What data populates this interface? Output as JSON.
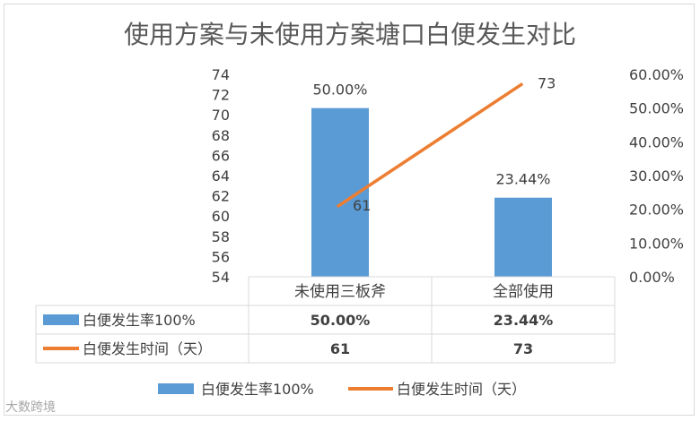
{
  "chart_data": {
    "type": "bar",
    "title": "使用方案与未使用方案塘口白便发生对比",
    "categories": [
      "未使用三板斧",
      "全部使用"
    ],
    "series": [
      {
        "name": "白便发生率100%",
        "type": "bar",
        "axis": "right",
        "values": [
          0.5,
          0.2344
        ],
        "labels": [
          "50.00%",
          "23.44%"
        ],
        "color": "#5b9bd5"
      },
      {
        "name": "白便发生时间（天）",
        "type": "line",
        "axis": "left",
        "values": [
          61,
          73
        ],
        "labels": [
          "61",
          "73"
        ],
        "color": "#ed7d31"
      }
    ],
    "y_left": {
      "min": 54,
      "max": 74,
      "step": 2,
      "ticks": [
        "54",
        "56",
        "58",
        "60",
        "62",
        "64",
        "66",
        "68",
        "70",
        "72",
        "74"
      ]
    },
    "y_right": {
      "min": 0,
      "max": 0.6,
      "step": 0.1,
      "ticks": [
        "0.00%",
        "10.00%",
        "20.00%",
        "30.00%",
        "40.00%",
        "50.00%",
        "60.00%"
      ]
    },
    "data_table": {
      "rows": [
        {
          "series": "白便发生率100%",
          "cells": [
            "50.00%",
            "23.44%"
          ]
        },
        {
          "series": "白便发生时间（天）",
          "cells": [
            "61",
            "73"
          ]
        }
      ]
    },
    "legend": {
      "position": "bottom"
    }
  },
  "watermark": "大数跨境"
}
